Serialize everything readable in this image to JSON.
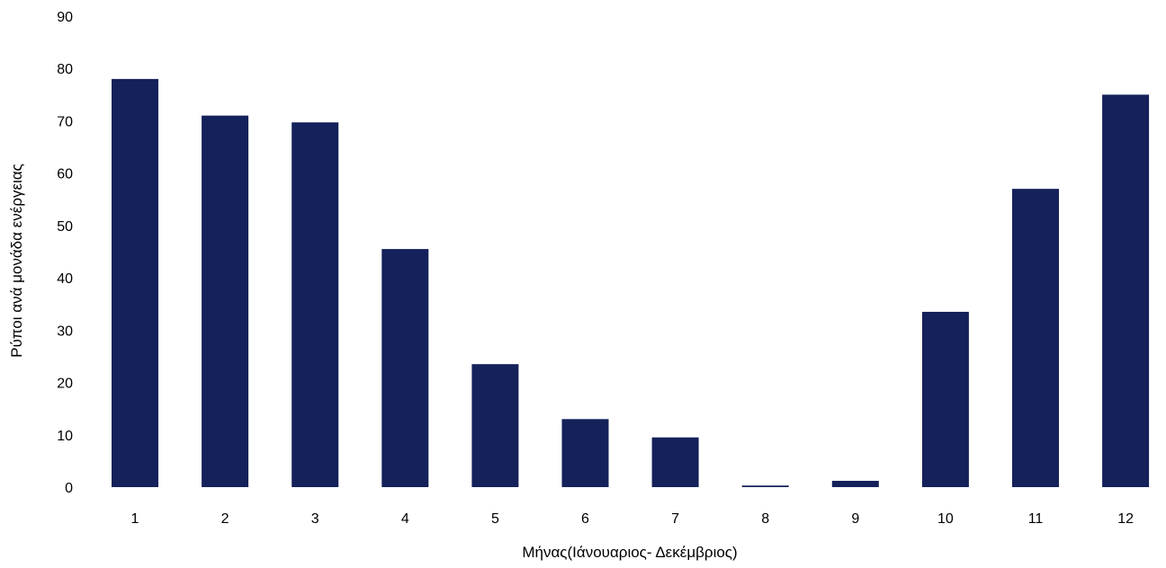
{
  "chart_data": {
    "type": "bar",
    "title": "",
    "xlabel": "Μήνας(Ιάνουαριος- Δεκέμβριος)",
    "ylabel": "Ρύποι ανά μονάδα ενέργειας",
    "categories": [
      "1",
      "2",
      "3",
      "4",
      "5",
      "6",
      "7",
      "8",
      "9",
      "10",
      "11",
      "12"
    ],
    "values": [
      78,
      71,
      69.7,
      45.5,
      23.5,
      13,
      9.5,
      0.3,
      1.2,
      33.5,
      57,
      75
    ],
    "ylim": [
      0,
      90
    ],
    "yticks": [
      0,
      10,
      20,
      30,
      40,
      50,
      60,
      70,
      80,
      90
    ],
    "grid": false,
    "legend": "none",
    "bar_color": "#14215a"
  }
}
